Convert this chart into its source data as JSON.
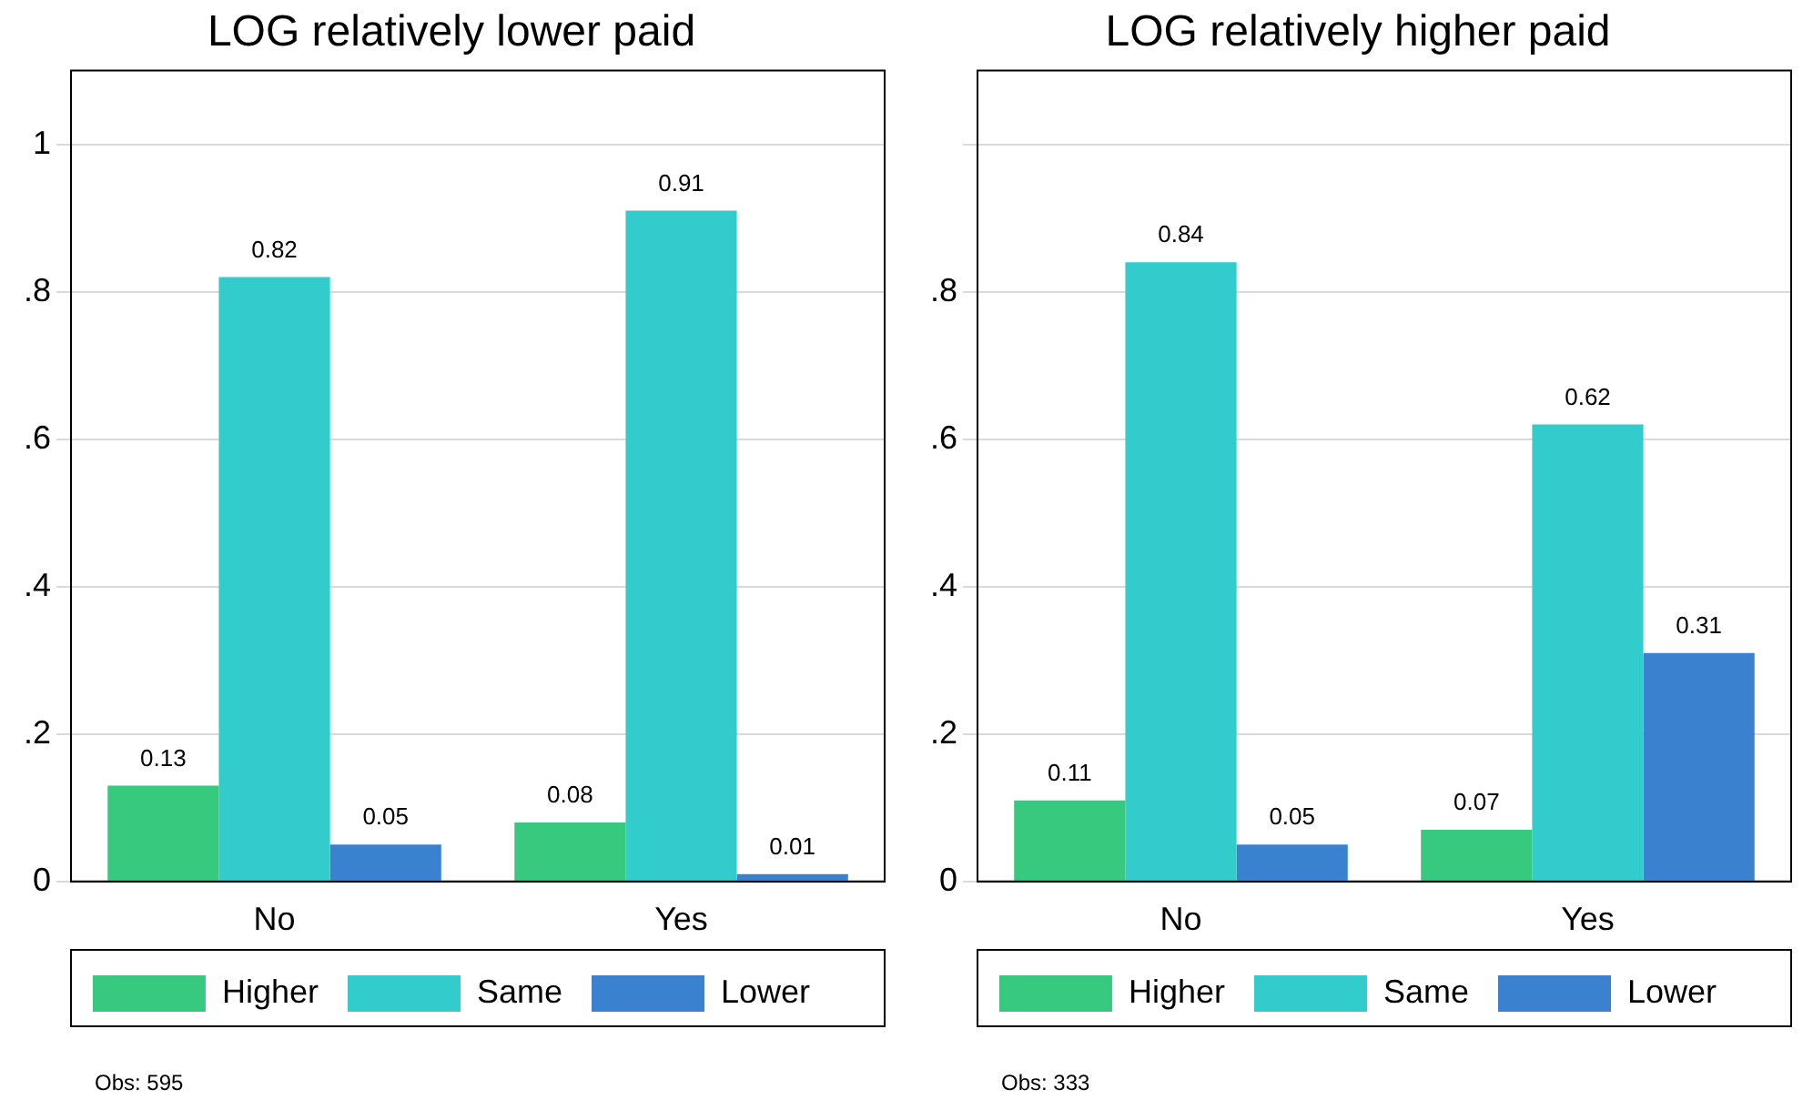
{
  "chart_data": [
    {
      "type": "bar",
      "title": "LOG relatively lower paid",
      "categories": [
        "No",
        "Yes"
      ],
      "series": [
        {
          "name": "Higher",
          "color": "#37c97d",
          "values": [
            0.13,
            0.08
          ]
        },
        {
          "name": "Same",
          "color": "#33cccc",
          "values": [
            0.82,
            0.91
          ]
        },
        {
          "name": "Lower",
          "color": "#3a82d0",
          "values": [
            0.05,
            0.01
          ]
        }
      ],
      "ylim": [
        0,
        1.1
      ],
      "yticks": [
        {
          "value": 0,
          "label": "0"
        },
        {
          "value": 0.2,
          "label": ".2"
        },
        {
          "value": 0.4,
          "label": ".4"
        },
        {
          "value": 0.6,
          "label": ".6"
        },
        {
          "value": 0.8,
          "label": ".8"
        },
        {
          "value": 1,
          "label": "1"
        }
      ],
      "grid": "y",
      "legend": "bottom",
      "data_labels": true,
      "annotations": [
        "Obs: 595"
      ]
    },
    {
      "type": "bar",
      "title": "LOG relatively higher paid",
      "categories": [
        "No",
        "Yes"
      ],
      "series": [
        {
          "name": "Higher",
          "color": "#37c97d",
          "values": [
            0.11,
            0.07
          ]
        },
        {
          "name": "Same",
          "color": "#33cccc",
          "values": [
            0.84,
            0.62
          ]
        },
        {
          "name": "Lower",
          "color": "#3a82d0",
          "values": [
            0.05,
            0.31
          ]
        }
      ],
      "ylim": [
        0,
        1.1
      ],
      "yticks": [
        {
          "value": 0,
          "label": "0"
        },
        {
          "value": 0.2,
          "label": ".2"
        },
        {
          "value": 0.4,
          "label": ".4"
        },
        {
          "value": 0.6,
          "label": ".6"
        },
        {
          "value": 0.8,
          "label": ".8"
        },
        {
          "value": 1,
          "label": null
        }
      ],
      "grid": "y",
      "legend": "bottom",
      "data_labels": true,
      "annotations": [
        "Obs: 333"
      ]
    }
  ]
}
